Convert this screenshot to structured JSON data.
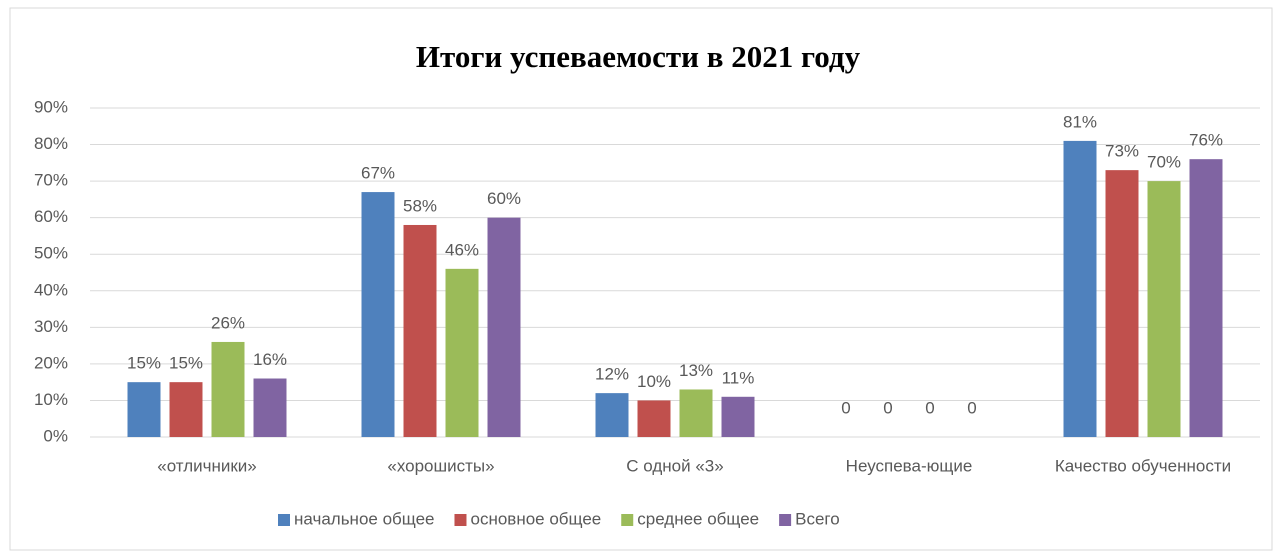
{
  "chart_data": {
    "type": "bar",
    "title": "Итоги успеваемости в 2021 году",
    "categories": [
      "«отличники»",
      "«хорошисты»",
      "С одной «3»",
      "Неуспева-ющие",
      "Качество обученности"
    ],
    "series": [
      {
        "name": "начальное общее",
        "color": "#4f81bd",
        "values": [
          15,
          67,
          12,
          0,
          81
        ],
        "value_labels": [
          "15%",
          "67%",
          "12%",
          "0",
          "81%"
        ]
      },
      {
        "name": "основное общее",
        "color": "#c0504d",
        "values": [
          15,
          58,
          10,
          0,
          73
        ],
        "value_labels": [
          "15%",
          "58%",
          "10%",
          "0",
          "73%"
        ]
      },
      {
        "name": "среднее общее",
        "color": "#9bbb59",
        "values": [
          26,
          46,
          13,
          0,
          70
        ],
        "value_labels": [
          "26%",
          "46%",
          "13%",
          "0",
          "70%"
        ]
      },
      {
        "name": "Всего",
        "color": "#8064a2",
        "values": [
          16,
          60,
          11,
          0,
          76
        ],
        "value_labels": [
          "16%",
          "60%",
          "11%",
          "0",
          "76%"
        ]
      }
    ],
    "ylim": [
      0,
      90
    ],
    "yticks": [
      {
        "value": 0,
        "label": "0%"
      },
      {
        "value": 10,
        "label": "10%"
      },
      {
        "value": 20,
        "label": "20%"
      },
      {
        "value": 30,
        "label": "30%"
      },
      {
        "value": 40,
        "label": "40%"
      },
      {
        "value": 50,
        "label": "50%"
      },
      {
        "value": 60,
        "label": "60%"
      },
      {
        "value": 70,
        "label": "70%"
      },
      {
        "value": 80,
        "label": "80%"
      },
      {
        "value": 90,
        "label": "90%"
      }
    ],
    "grid": true,
    "legend": "bottom"
  }
}
